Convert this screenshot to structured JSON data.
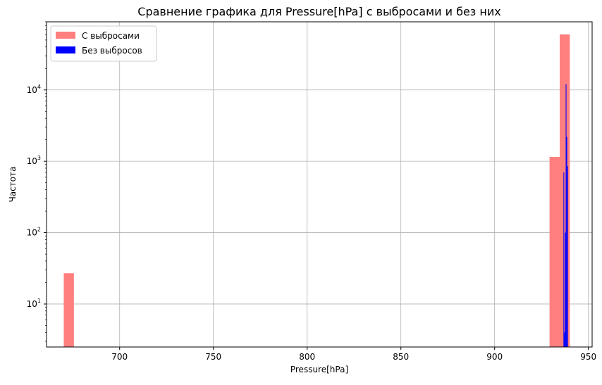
{
  "chart_data": {
    "type": "bar",
    "title": "Сравнение графика для Pressure[hPa] с выбросами и без них",
    "xlabel": "Pressure[hPa]",
    "ylabel": "Частота",
    "yscale": "log",
    "xlim": [
      661,
      952
    ],
    "ylim": [
      2.5,
      90000
    ],
    "xticks": [
      700,
      750,
      800,
      850,
      900,
      950
    ],
    "yticks": [
      {
        "value": 10,
        "exp": "1"
      },
      {
        "value": 100,
        "exp": "2"
      },
      {
        "value": 1000,
        "exp": "3"
      },
      {
        "value": 10000,
        "exp": "4"
      }
    ],
    "grid": true,
    "legend_position": "top-left",
    "series": [
      {
        "name": "С выбросами",
        "color": "#ff7f7f",
        "bins": [
          {
            "x0": 670.2,
            "x1": 675.6,
            "count": 27
          },
          {
            "x0": 929.3,
            "x1": 934.7,
            "count": 1150
          },
          {
            "x0": 934.7,
            "x1": 940.1,
            "count": 60000
          }
        ]
      },
      {
        "name": "Без выбросов",
        "color": "#0000ff",
        "bins": [
          {
            "x0": 936.7,
            "x1": 937.1,
            "count": 700
          },
          {
            "x0": 937.1,
            "x1": 937.5,
            "count": 4
          },
          {
            "x0": 937.5,
            "x1": 937.9,
            "count": 100
          },
          {
            "x0": 937.9,
            "x1": 938.3,
            "count": 12000
          },
          {
            "x0": 938.3,
            "x1": 938.7,
            "count": 2200
          },
          {
            "x0": 938.7,
            "x1": 939.1,
            "count": 850
          }
        ]
      }
    ]
  }
}
